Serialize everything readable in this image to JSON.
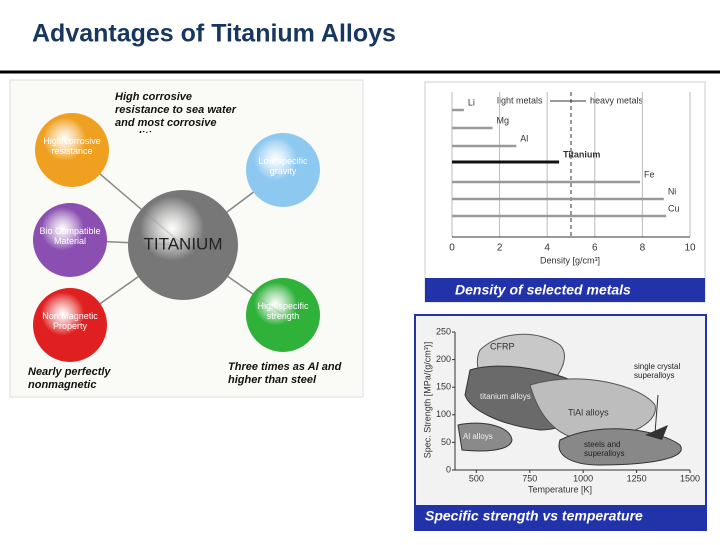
{
  "title": "Advantages of Titanium Alloys",
  "diagram": {
    "center": "TITANIUM",
    "nodes": [
      {
        "label": "High corrosive resistance",
        "color": "#f0a020"
      },
      {
        "label": "Low specific gravity",
        "color": "#8cc8f0"
      },
      {
        "label": "Bio Compatible Material",
        "color": "#8a4fb0"
      },
      {
        "label": "High specific strength",
        "color": "#2fb13a"
      },
      {
        "label": "Non Magnetic Property",
        "color": "#e02020"
      }
    ],
    "notes": [
      "High corrosive resistance to sea water and most corrosive conditions",
      "Nearly perfectly nonmagnetic",
      "Three times as Al and higher than steel"
    ]
  },
  "density_chart": {
    "caption": "Density of selected metals",
    "header_left": "light metals",
    "header_right": "heavy metals",
    "divider": 5,
    "axis_label": "Density [g/cm³]",
    "xlim": [
      0,
      10
    ],
    "xticks": [
      0,
      2,
      4,
      6,
      8,
      10
    ],
    "metals": [
      {
        "name": "Li",
        "density": 0.5,
        "color": "#999999"
      },
      {
        "name": "Mg",
        "density": 1.7,
        "color": "#999999"
      },
      {
        "name": "Al",
        "density": 2.7,
        "color": "#999999"
      },
      {
        "name": "Titanium",
        "density": 4.5,
        "color": "#111111"
      },
      {
        "name": "Fe",
        "density": 7.9,
        "color": "#999999"
      },
      {
        "name": "Ni",
        "density": 8.9,
        "color": "#999999"
      },
      {
        "name": "Cu",
        "density": 9.0,
        "color": "#999999"
      }
    ]
  },
  "strength_chart": {
    "caption": "Specific strength vs temperature",
    "x_label": "Temperature [K]",
    "y_label": "Spec. Strength [MPa/(g/cm³)]",
    "xlim": [
      400,
      1500
    ],
    "ylim": [
      0,
      250
    ],
    "xticks": [
      500,
      750,
      1000,
      1250,
      1500
    ],
    "yticks": [
      0,
      50,
      100,
      150,
      200,
      250
    ],
    "regions": [
      "CFRP",
      "titanium alloys",
      "TiAl alloys",
      "Al alloys",
      "steels and superalloys",
      "single crystal superalloys"
    ]
  }
}
